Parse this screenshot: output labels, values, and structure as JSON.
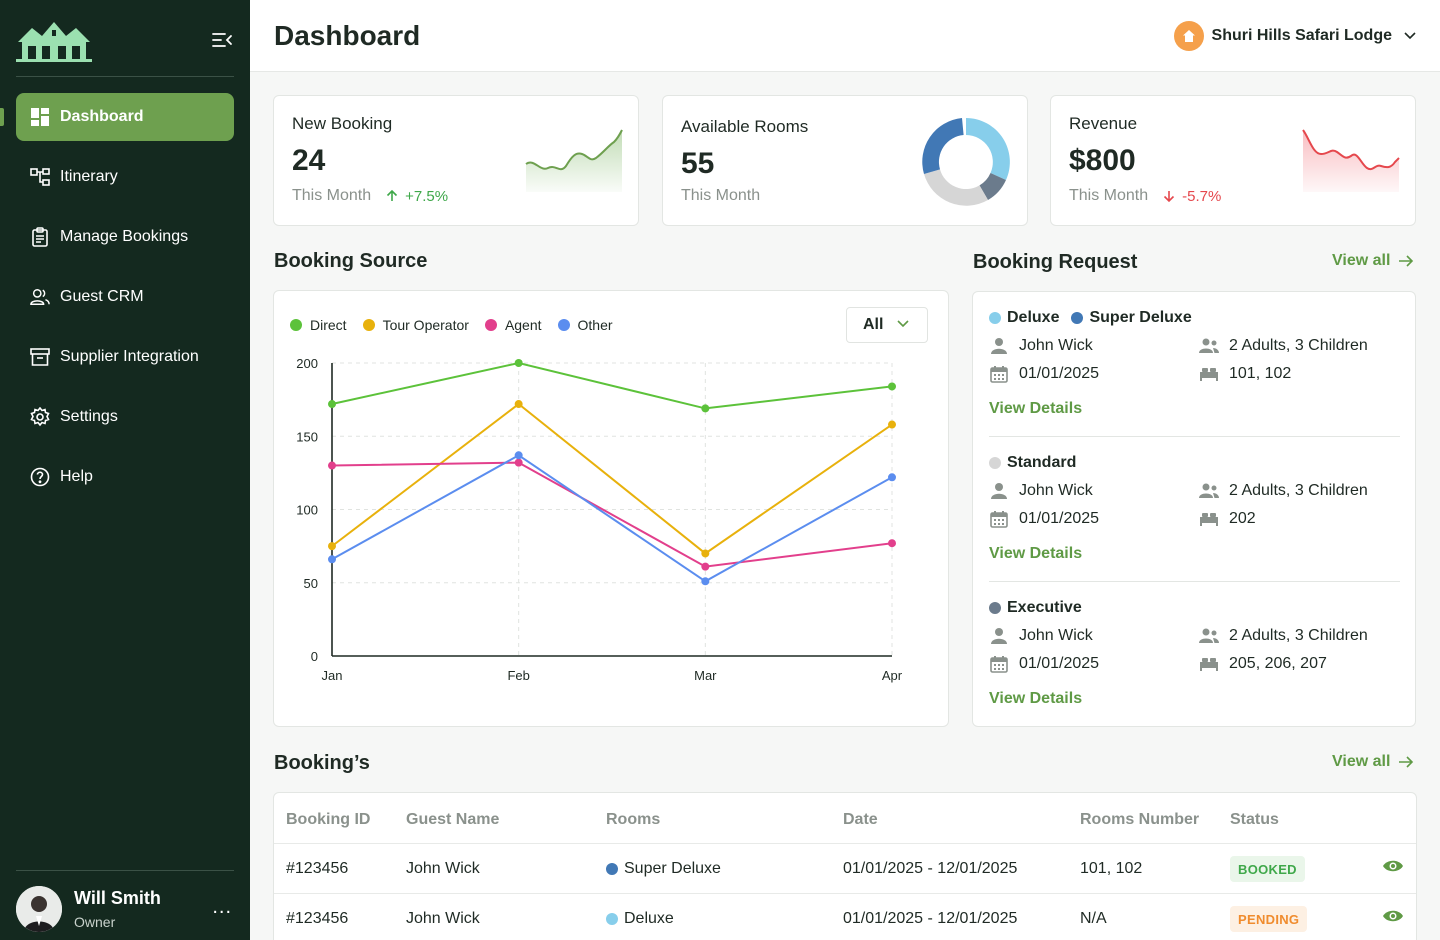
{
  "sidebar": {
    "items": [
      {
        "label": "Dashboard",
        "icon": "dashboard-icon"
      },
      {
        "label": "Itinerary",
        "icon": "sitemap-icon"
      },
      {
        "label": "Manage Bookings",
        "icon": "clipboard-icon"
      },
      {
        "label": "Guest CRM",
        "icon": "users-icon"
      },
      {
        "label": "Supplier Integration",
        "icon": "archive-icon"
      },
      {
        "label": "Settings",
        "icon": "gear-icon"
      },
      {
        "label": "Help",
        "icon": "help-icon"
      }
    ],
    "user": {
      "name": "Will Smith",
      "role": "Owner",
      "menu": "..."
    }
  },
  "header": {
    "title": "Dashboard",
    "property": "Shuri Hills Safari Lodge"
  },
  "stats": {
    "new_booking": {
      "title": "New Booking",
      "value": "24",
      "period": "This Month",
      "delta": "+7.5%"
    },
    "available_rooms": {
      "title": "Available Rooms",
      "value": "55",
      "period": "This Month"
    },
    "revenue": {
      "title": "Revenue",
      "value": "$800",
      "period": "This Month",
      "delta": "-5.7%"
    }
  },
  "booking_source": {
    "title": "Booking Source",
    "filter": "All"
  },
  "chart_data": {
    "type": "line",
    "categories": [
      "Jan",
      "Feb",
      "Mar",
      "Apr"
    ],
    "series": [
      {
        "name": "Direct",
        "color": "#5cc23a",
        "values": [
          172,
          200,
          169,
          184
        ]
      },
      {
        "name": "Tour Operator",
        "color": "#e8b10c",
        "values": [
          75,
          172,
          70,
          158
        ]
      },
      {
        "name": "Agent",
        "color": "#e23f8c",
        "values": [
          130,
          132,
          61,
          77
        ]
      },
      {
        "name": "Other",
        "color": "#5b8def",
        "values": [
          66,
          137,
          51,
          122
        ]
      }
    ],
    "yticks": [
      0,
      50,
      100,
      150,
      200
    ],
    "ylim": [
      0,
      200
    ],
    "grid": true,
    "legend": "top-left"
  },
  "booking_request": {
    "title": "Booking Request",
    "view_all": "View all",
    "items": [
      {
        "types": [
          {
            "name": "Deluxe",
            "color": "#87ceeb"
          },
          {
            "name": "Super Deluxe",
            "color": "#4178b5"
          }
        ],
        "guest": "John Wick",
        "date": "01/01/2025",
        "occupancy": "2 Adults, 3 Children",
        "rooms": "101, 102",
        "action": "View Details"
      },
      {
        "types": [
          {
            "name": "Standard",
            "color": "#d6d6d6"
          }
        ],
        "guest": "John Wick",
        "date": "01/01/2025",
        "occupancy": "2 Adults, 3 Children",
        "rooms": "202",
        "action": "View Details"
      },
      {
        "types": [
          {
            "name": "Executive",
            "color": "#6b7b8c"
          }
        ],
        "guest": "John Wick",
        "date": "01/01/2025",
        "occupancy": "2 Adults, 3 Children",
        "rooms": "205, 206, 207",
        "action": "View Details"
      }
    ]
  },
  "bookings": {
    "title": "Booking’s",
    "view_all": "View all",
    "columns": [
      "Booking ID",
      "Guest Name",
      "Rooms",
      "Date",
      "Rooms Number",
      "Status"
    ],
    "rows": [
      {
        "id": "#123456",
        "guest": "John Wick",
        "room": "Super Deluxe",
        "room_color": "#4178b5",
        "date": "01/01/2025 - 12/01/2025",
        "rooms_number": "101, 102",
        "status": "BOOKED",
        "status_color": "#3fa84a",
        "status_bg": "#eaf6ea"
      },
      {
        "id": "#123456",
        "guest": "John Wick",
        "room": "Deluxe",
        "room_color": "#87ceeb",
        "date": "01/01/2025 - 12/01/2025",
        "rooms_number": "N/A",
        "status": "PENDING",
        "status_color": "#f08c2e",
        "status_bg": "#fdf0e3"
      }
    ]
  },
  "colors": {
    "sidebar_bg": "#14291f",
    "accent": "#6ea04f",
    "positive": "#3fa84a",
    "negative": "#e5484d"
  }
}
